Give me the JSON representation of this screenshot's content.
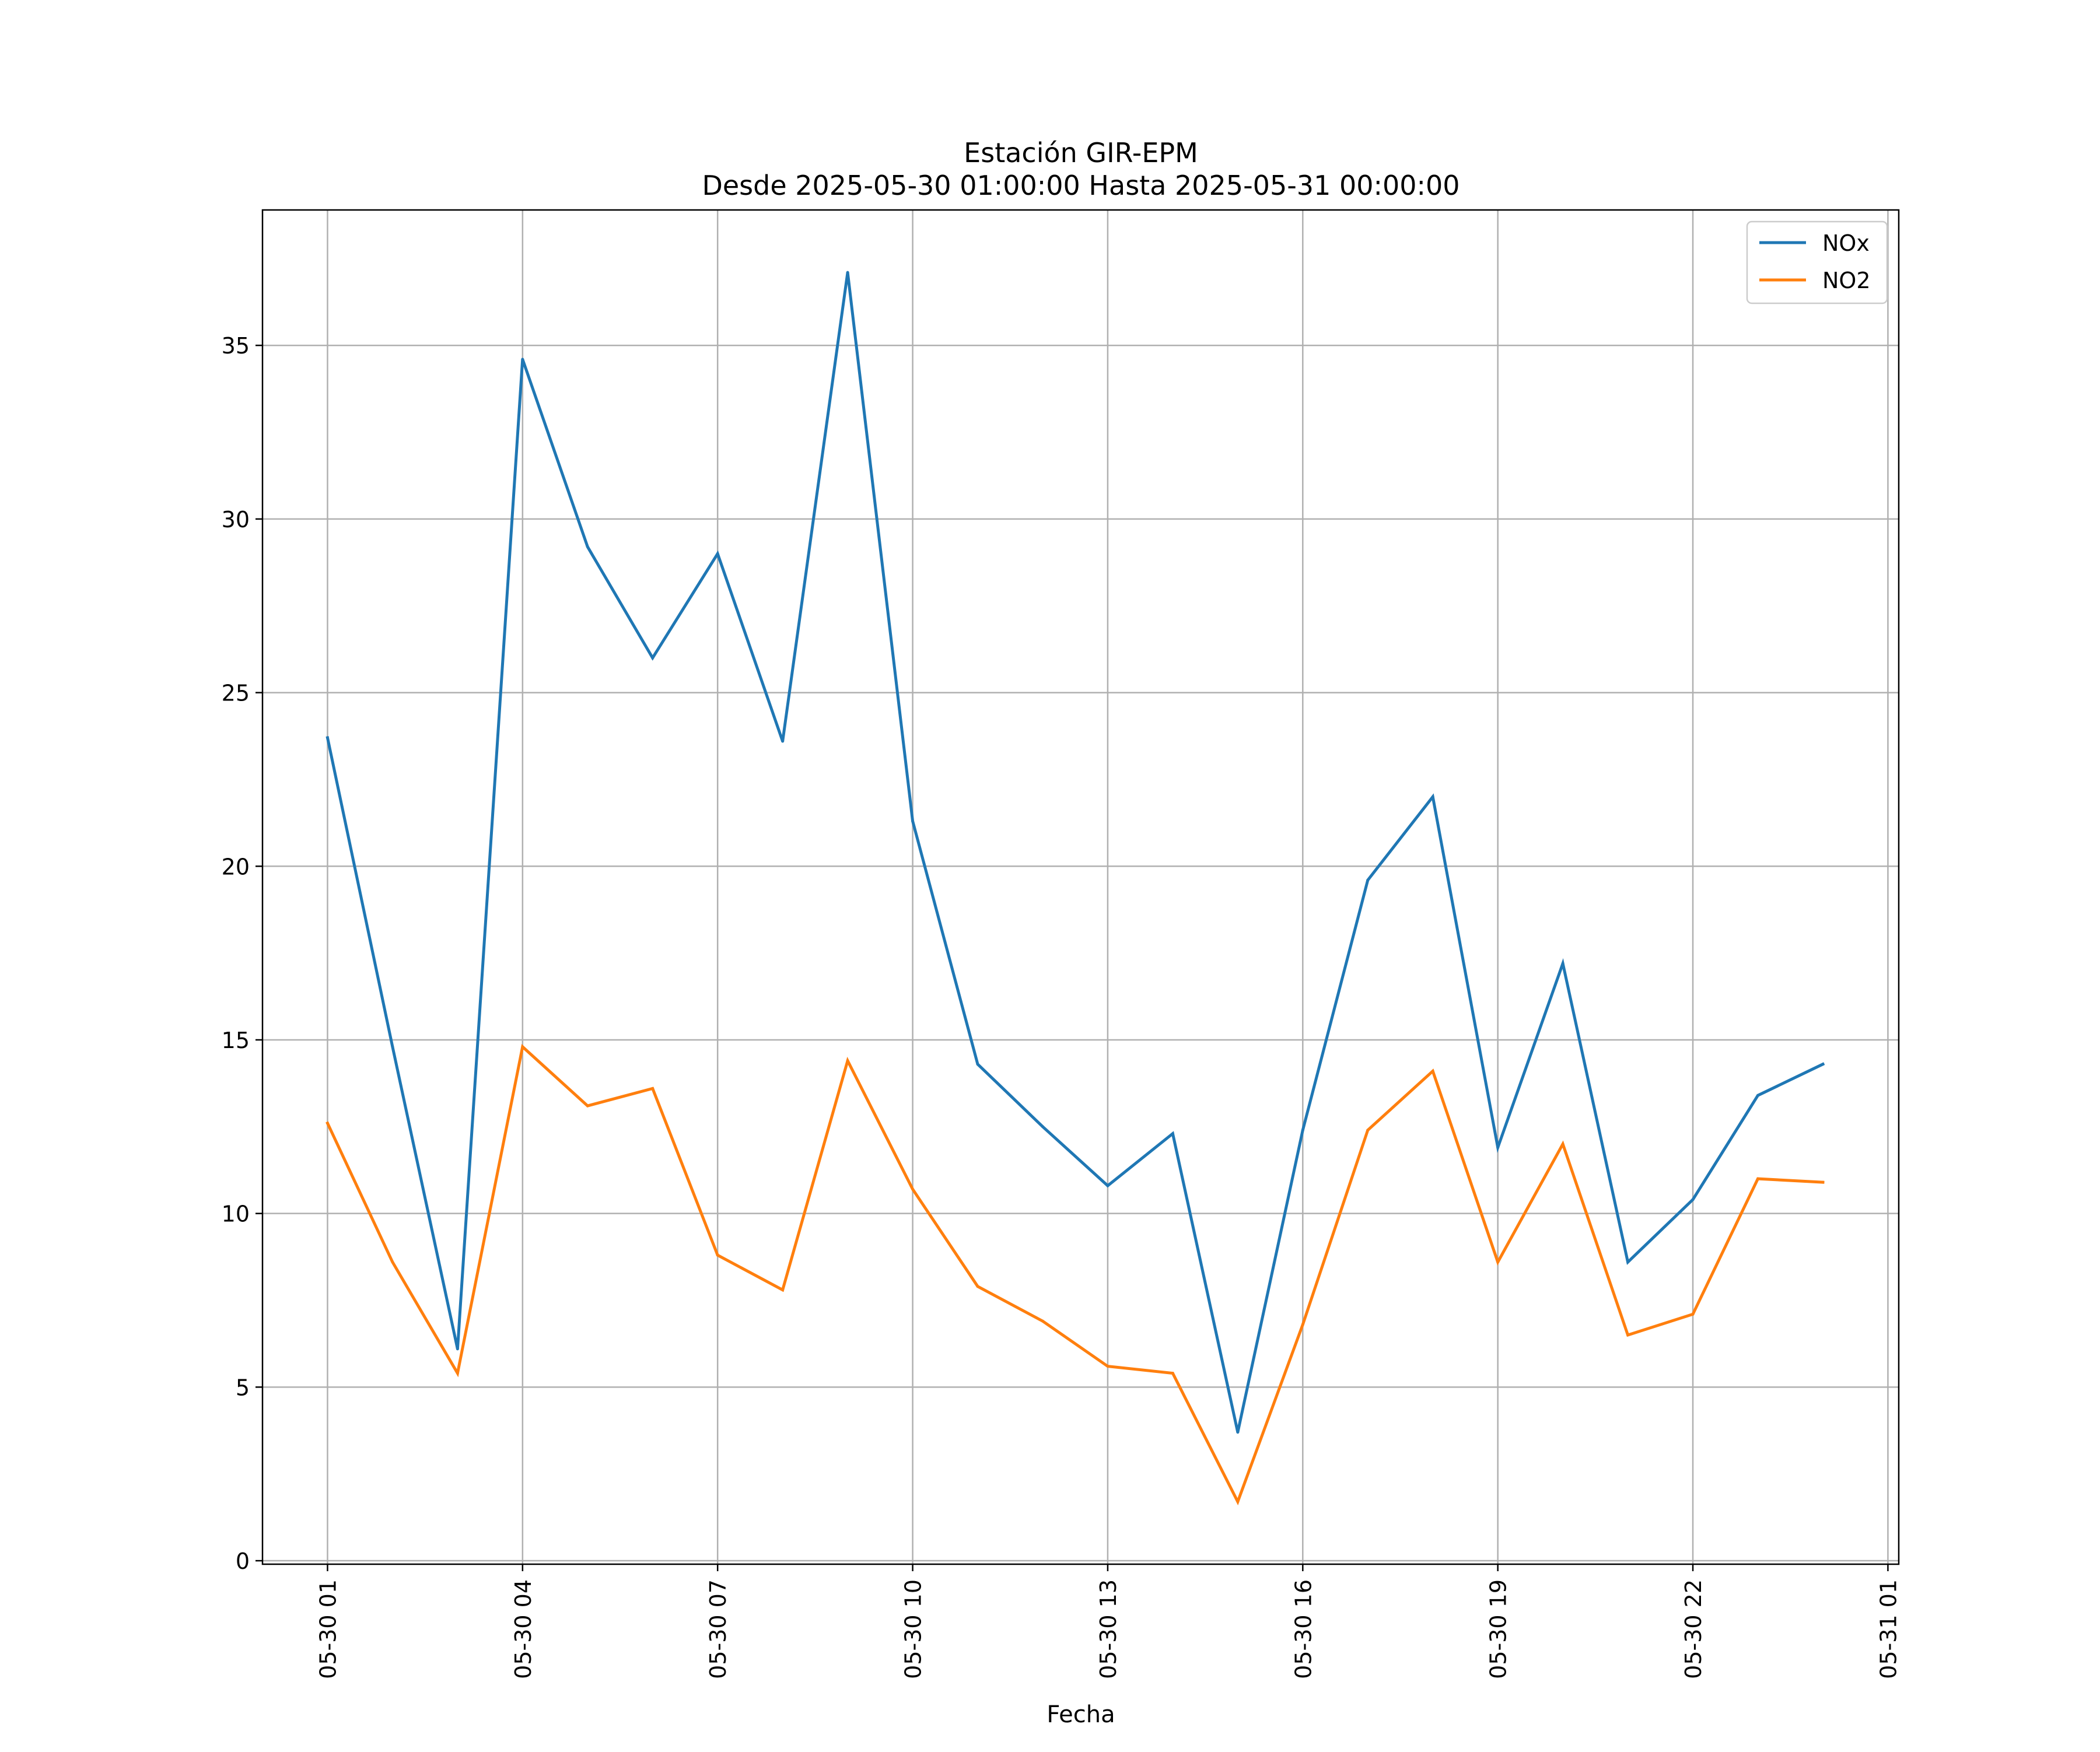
{
  "chart_data": {
    "type": "line",
    "title": "Estación GIR-EPM",
    "subtitle": "Desde 2025-05-30 01:00:00 Hasta 2025-05-31 00:00:00",
    "xlabel": "Fecha",
    "ylabel": "",
    "x": [
      "2025-05-30 01:00",
      "2025-05-30 02:00",
      "2025-05-30 03:00",
      "2025-05-30 04:00",
      "2025-05-30 05:00",
      "2025-05-30 06:00",
      "2025-05-30 07:00",
      "2025-05-30 08:00",
      "2025-05-30 09:00",
      "2025-05-30 10:00",
      "2025-05-30 11:00",
      "2025-05-30 12:00",
      "2025-05-30 13:00",
      "2025-05-30 14:00",
      "2025-05-30 15:00",
      "2025-05-30 16:00",
      "2025-05-30 17:00",
      "2025-05-30 18:00",
      "2025-05-30 19:00",
      "2025-05-30 20:00",
      "2025-05-30 21:00",
      "2025-05-30 22:00",
      "2025-05-30 23:00",
      "2025-05-31 00:00"
    ],
    "x_range": [
      "2025-05-30 00:00",
      "2025-05-31 01:10"
    ],
    "series": [
      {
        "name": "NOx",
        "color": "#1f77b4",
        "values": [
          23.7,
          14.8,
          6.1,
          34.6,
          29.2,
          26.0,
          29.0,
          23.6,
          37.1,
          21.3,
          14.3,
          12.5,
          10.8,
          12.3,
          3.7,
          12.4,
          19.6,
          22.0,
          11.9,
          17.2,
          8.6,
          10.4,
          13.4,
          14.3
        ]
      },
      {
        "name": "NO2",
        "color": "#ff7f0e",
        "values": [
          12.6,
          8.6,
          5.4,
          14.8,
          13.1,
          13.6,
          8.8,
          7.8,
          14.4,
          10.7,
          7.9,
          6.9,
          5.6,
          5.4,
          1.7,
          6.8,
          12.4,
          14.1,
          8.6,
          12.0,
          6.5,
          7.1,
          11.0,
          10.9
        ]
      }
    ],
    "ylim": [
      -0.1,
      38.9
    ],
    "y_ticks": [
      0,
      5,
      10,
      15,
      20,
      25,
      30,
      35
    ],
    "x_ticks": [
      {
        "label": "05-30 01",
        "date": "2025-05-30 01:00"
      },
      {
        "label": "05-30 04",
        "date": "2025-05-30 04:00"
      },
      {
        "label": "05-30 07",
        "date": "2025-05-30 07:00"
      },
      {
        "label": "05-30 10",
        "date": "2025-05-30 10:00"
      },
      {
        "label": "05-30 13",
        "date": "2025-05-30 13:00"
      },
      {
        "label": "05-30 16",
        "date": "2025-05-30 16:00"
      },
      {
        "label": "05-30 19",
        "date": "2025-05-30 19:00"
      },
      {
        "label": "05-30 22",
        "date": "2025-05-30 22:00"
      },
      {
        "label": "05-31 01",
        "date": "2025-05-31 01:00"
      }
    ],
    "grid": true,
    "legend_position": "top-right"
  }
}
